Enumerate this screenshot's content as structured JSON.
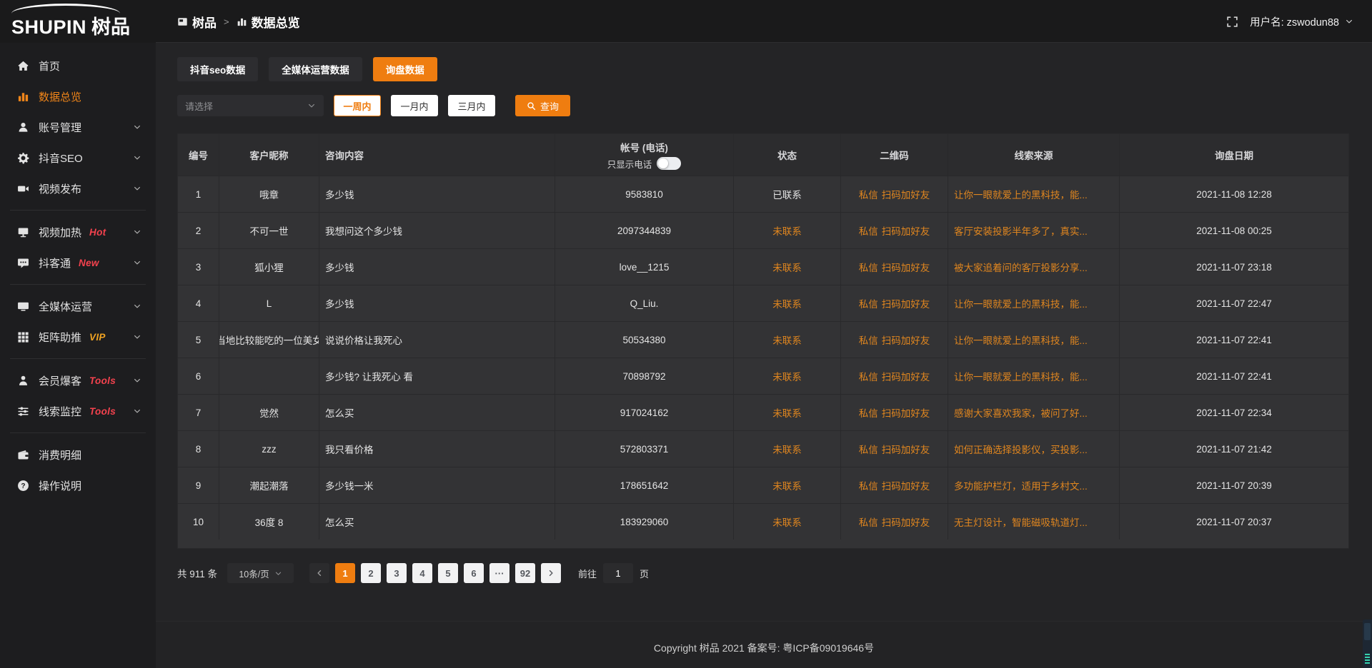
{
  "brand": {
    "name": "SHUPIN",
    "name_cjk": "树品"
  },
  "topbar": {
    "breadcrumb": [
      {
        "icon": "app-window-icon",
        "label": "树品"
      },
      {
        "icon": "bar-chart-icon",
        "label": "数据总览"
      }
    ],
    "separator": ">",
    "username": "用户名: zswodun88"
  },
  "sidebar": {
    "items": [
      {
        "id": "home",
        "icon": "home-icon",
        "label": "首页"
      },
      {
        "id": "data-overview",
        "icon": "bar-chart-icon",
        "label": "数据总览",
        "active": true
      },
      {
        "id": "account-management",
        "icon": "user-icon",
        "label": "账号管理",
        "chevron": true
      },
      {
        "id": "douyin-seo",
        "icon": "gear-icon",
        "label": "抖音SEO",
        "chevron": true
      },
      {
        "id": "video-publish",
        "icon": "video-icon",
        "label": "视频发布",
        "chevron": true
      },
      {
        "divider": true
      },
      {
        "id": "video-heat",
        "icon": "tv-icon",
        "label": "视频加热",
        "badge": "Hot",
        "badge_color": "red",
        "chevron": true
      },
      {
        "id": "douketong",
        "icon": "chat-icon",
        "label": "抖客通",
        "badge": "New",
        "badge_color": "red",
        "chevron": true
      },
      {
        "divider": true
      },
      {
        "id": "media-operation",
        "icon": "monitor-icon",
        "label": "全媒体运营",
        "chevron": true
      },
      {
        "id": "matrix-boost",
        "icon": "grid-icon",
        "label": "矩阵助推",
        "badge": "VIP",
        "badge_color": "orange",
        "chevron": true
      },
      {
        "divider": true
      },
      {
        "id": "member-baoke",
        "icon": "member-icon",
        "label": "会员爆客",
        "badge": "Tools",
        "badge_color": "red",
        "chevron": true
      },
      {
        "id": "clue-monitor",
        "icon": "sliders-icon",
        "label": "线索监控",
        "badge": "Tools",
        "badge_color": "red",
        "chevron": true
      },
      {
        "divider": true
      },
      {
        "id": "consumption-detail",
        "icon": "wallet-icon",
        "label": "消费明细"
      },
      {
        "id": "operation-guide",
        "icon": "question-icon",
        "label": "操作说明"
      }
    ]
  },
  "tabs": [
    {
      "id": "douyin-seo-data",
      "label": "抖音seo数据"
    },
    {
      "id": "media-operation-data",
      "label": "全媒体运营数据"
    },
    {
      "id": "inquiry-data",
      "label": "询盘数据",
      "active": true
    }
  ],
  "filters": {
    "select_placeholder": "请选择",
    "periods": [
      {
        "label": "一周内",
        "active": true
      },
      {
        "label": "一月内"
      },
      {
        "label": "三月内"
      }
    ],
    "query_label": "查询"
  },
  "table": {
    "headers": [
      "编号",
      "客户昵称",
      "咨询内容",
      "帐号 (电话)",
      "状态",
      "二维码",
      "线索来源",
      "询盘日期"
    ],
    "phone_toggle_label": "只显示电话",
    "rows": [
      {
        "no": "1",
        "nickname": "哦章",
        "inquiry": "多少钱",
        "account": "9583810",
        "status": "已联系",
        "status_type": "contacted",
        "qr": [
          "私信",
          "扫码加好友"
        ],
        "source": "让你一眼就爱上的黑科技，能...",
        "date": "2021-11-08 12:28"
      },
      {
        "no": "2",
        "nickname": "不可一世",
        "inquiry": "我想问这个多少钱",
        "account": "2097344839",
        "status": "未联系",
        "status_type": "uncontacted",
        "qr": [
          "私信",
          "扫码加好友"
        ],
        "source": "客厅安装投影半年多了，真实...",
        "date": "2021-11-08 00:25"
      },
      {
        "no": "3",
        "nickname": "狐小狸",
        "inquiry": "多少钱",
        "account": "love__1215",
        "status": "未联系",
        "status_type": "uncontacted",
        "qr": [
          "私信",
          "扫码加好友"
        ],
        "source": "被大家追着问的客厅投影分享...",
        "date": "2021-11-07 23:18"
      },
      {
        "no": "4",
        "nickname": "L",
        "inquiry": "多少钱",
        "account": "Q_Liu.",
        "status": "未联系",
        "status_type": "uncontacted",
        "qr": [
          "私信",
          "扫码加好友"
        ],
        "source": "让你一眼就爱上的黑科技，能...",
        "date": "2021-11-07 22:47"
      },
      {
        "no": "5",
        "nickname": "当地比较能吃的一位美女",
        "inquiry": "说说价格让我死心",
        "account": "50534380",
        "status": "未联系",
        "status_type": "uncontacted",
        "qr": [
          "私信",
          "扫码加好友"
        ],
        "source": "让你一眼就爱上的黑科技，能...",
        "date": "2021-11-07 22:41"
      },
      {
        "no": "6",
        "nickname": "",
        "inquiry": "多少钱? 让我死心 看",
        "account": "70898792",
        "status": "未联系",
        "status_type": "uncontacted",
        "qr": [
          "私信",
          "扫码加好友"
        ],
        "source": "让你一眼就爱上的黑科技，能...",
        "date": "2021-11-07 22:41"
      },
      {
        "no": "7",
        "nickname": "觉然",
        "inquiry": "怎么买",
        "account": "917024162",
        "status": "未联系",
        "status_type": "uncontacted",
        "qr": [
          "私信",
          "扫码加好友"
        ],
        "source": "感谢大家喜欢我家，被问了好...",
        "date": "2021-11-07 22:34"
      },
      {
        "no": "8",
        "nickname": "zzz",
        "inquiry": "我只看价格",
        "account": "572803371",
        "status": "未联系",
        "status_type": "uncontacted",
        "qr": [
          "私信",
          "扫码加好友"
        ],
        "source": "如何正确选择投影仪，买投影...",
        "date": "2021-11-07 21:42"
      },
      {
        "no": "9",
        "nickname": "潮起潮落",
        "inquiry": "多少钱一米",
        "account": "178651642",
        "status": "未联系",
        "status_type": "uncontacted",
        "qr": [
          "私信",
          "扫码加好友"
        ],
        "source": "多功能护栏灯，适用于乡村文...",
        "date": "2021-11-07 20:39"
      },
      {
        "no": "10",
        "nickname": "36度 8",
        "inquiry": "怎么买",
        "account": "183929060",
        "status": "未联系",
        "status_type": "uncontacted",
        "qr": [
          "私信",
          "扫码加好友"
        ],
        "source": "无主灯设计，智能磁吸轨道灯...",
        "date": "2021-11-07 20:37"
      }
    ]
  },
  "pagination": {
    "total": "共 911 条",
    "page_size": "10条/页",
    "pages": [
      "1",
      "2",
      "3",
      "4",
      "5",
      "6",
      "···",
      "92"
    ],
    "active_page": "1",
    "goto_label": "前往",
    "goto_value": "1",
    "goto_suffix": "页"
  },
  "footer": {
    "copyright": "Copyright 树品 2021 备案号: 粤ICP备09019646号"
  },
  "colors": {
    "accent": "#ef7d10",
    "link_orange": "#e0861f",
    "sidebar_active": "#f08519",
    "badge_red": "#f5424e",
    "badge_vip": "#f0a322",
    "stripe_teal": "#35d3ae"
  }
}
